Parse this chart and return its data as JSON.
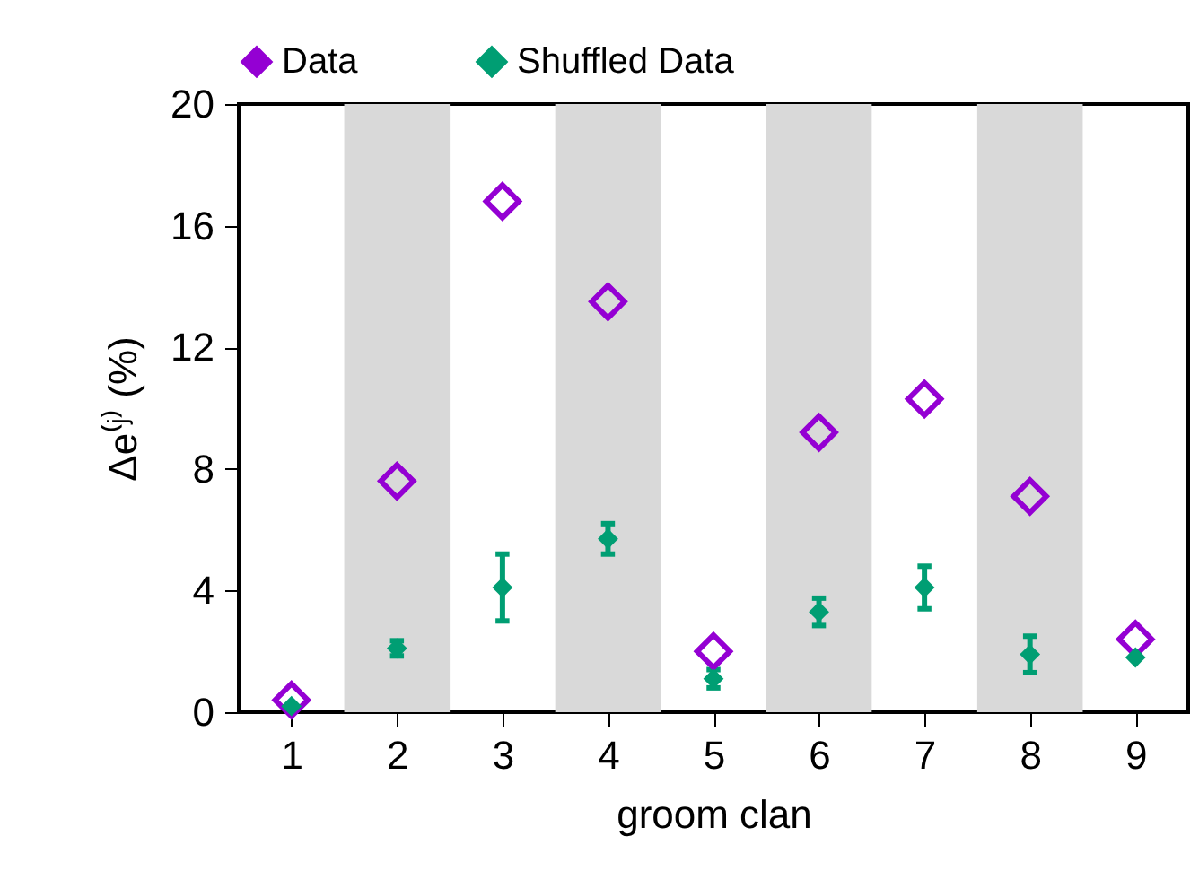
{
  "chart_data": {
    "type": "scatter",
    "xlabel": "groom clan",
    "ylabel": "Δe⁽ʲ⁾ (%)",
    "xlim": [
      0.5,
      9.5
    ],
    "xticks": [
      1,
      2,
      3,
      4,
      5,
      6,
      7,
      8,
      9
    ],
    "ylim": [
      0,
      20
    ],
    "yticks": [
      0,
      4,
      8,
      12,
      16,
      20
    ],
    "x": [
      1,
      2,
      3,
      4,
      5,
      6,
      7,
      8,
      9
    ],
    "marker": "diamond",
    "legend": "top",
    "grid": false,
    "bands": [
      {
        "axis": "x",
        "from": 1.5,
        "to": 2.5,
        "color": "#d9d9d9"
      },
      {
        "axis": "x",
        "from": 3.5,
        "to": 4.5,
        "color": "#d9d9d9"
      },
      {
        "axis": "x",
        "from": 5.5,
        "to": 6.5,
        "color": "#d9d9d9"
      },
      {
        "axis": "x",
        "from": 7.5,
        "to": 8.5,
        "color": "#d9d9d9"
      }
    ],
    "series": [
      {
        "name": "Data",
        "color": "#9400d3",
        "values": [
          0.4,
          7.6,
          16.8,
          13.5,
          2.0,
          9.2,
          10.3,
          7.1,
          2.4
        ]
      },
      {
        "name": "Shuffled Data",
        "color": "#009e73",
        "values": [
          0.2,
          2.1,
          4.1,
          5.7,
          1.1,
          3.3,
          4.1,
          1.9,
          1.8
        ],
        "errors": [
          null,
          0.25,
          1.1,
          0.5,
          0.3,
          0.45,
          0.7,
          0.6,
          null
        ]
      }
    ]
  }
}
